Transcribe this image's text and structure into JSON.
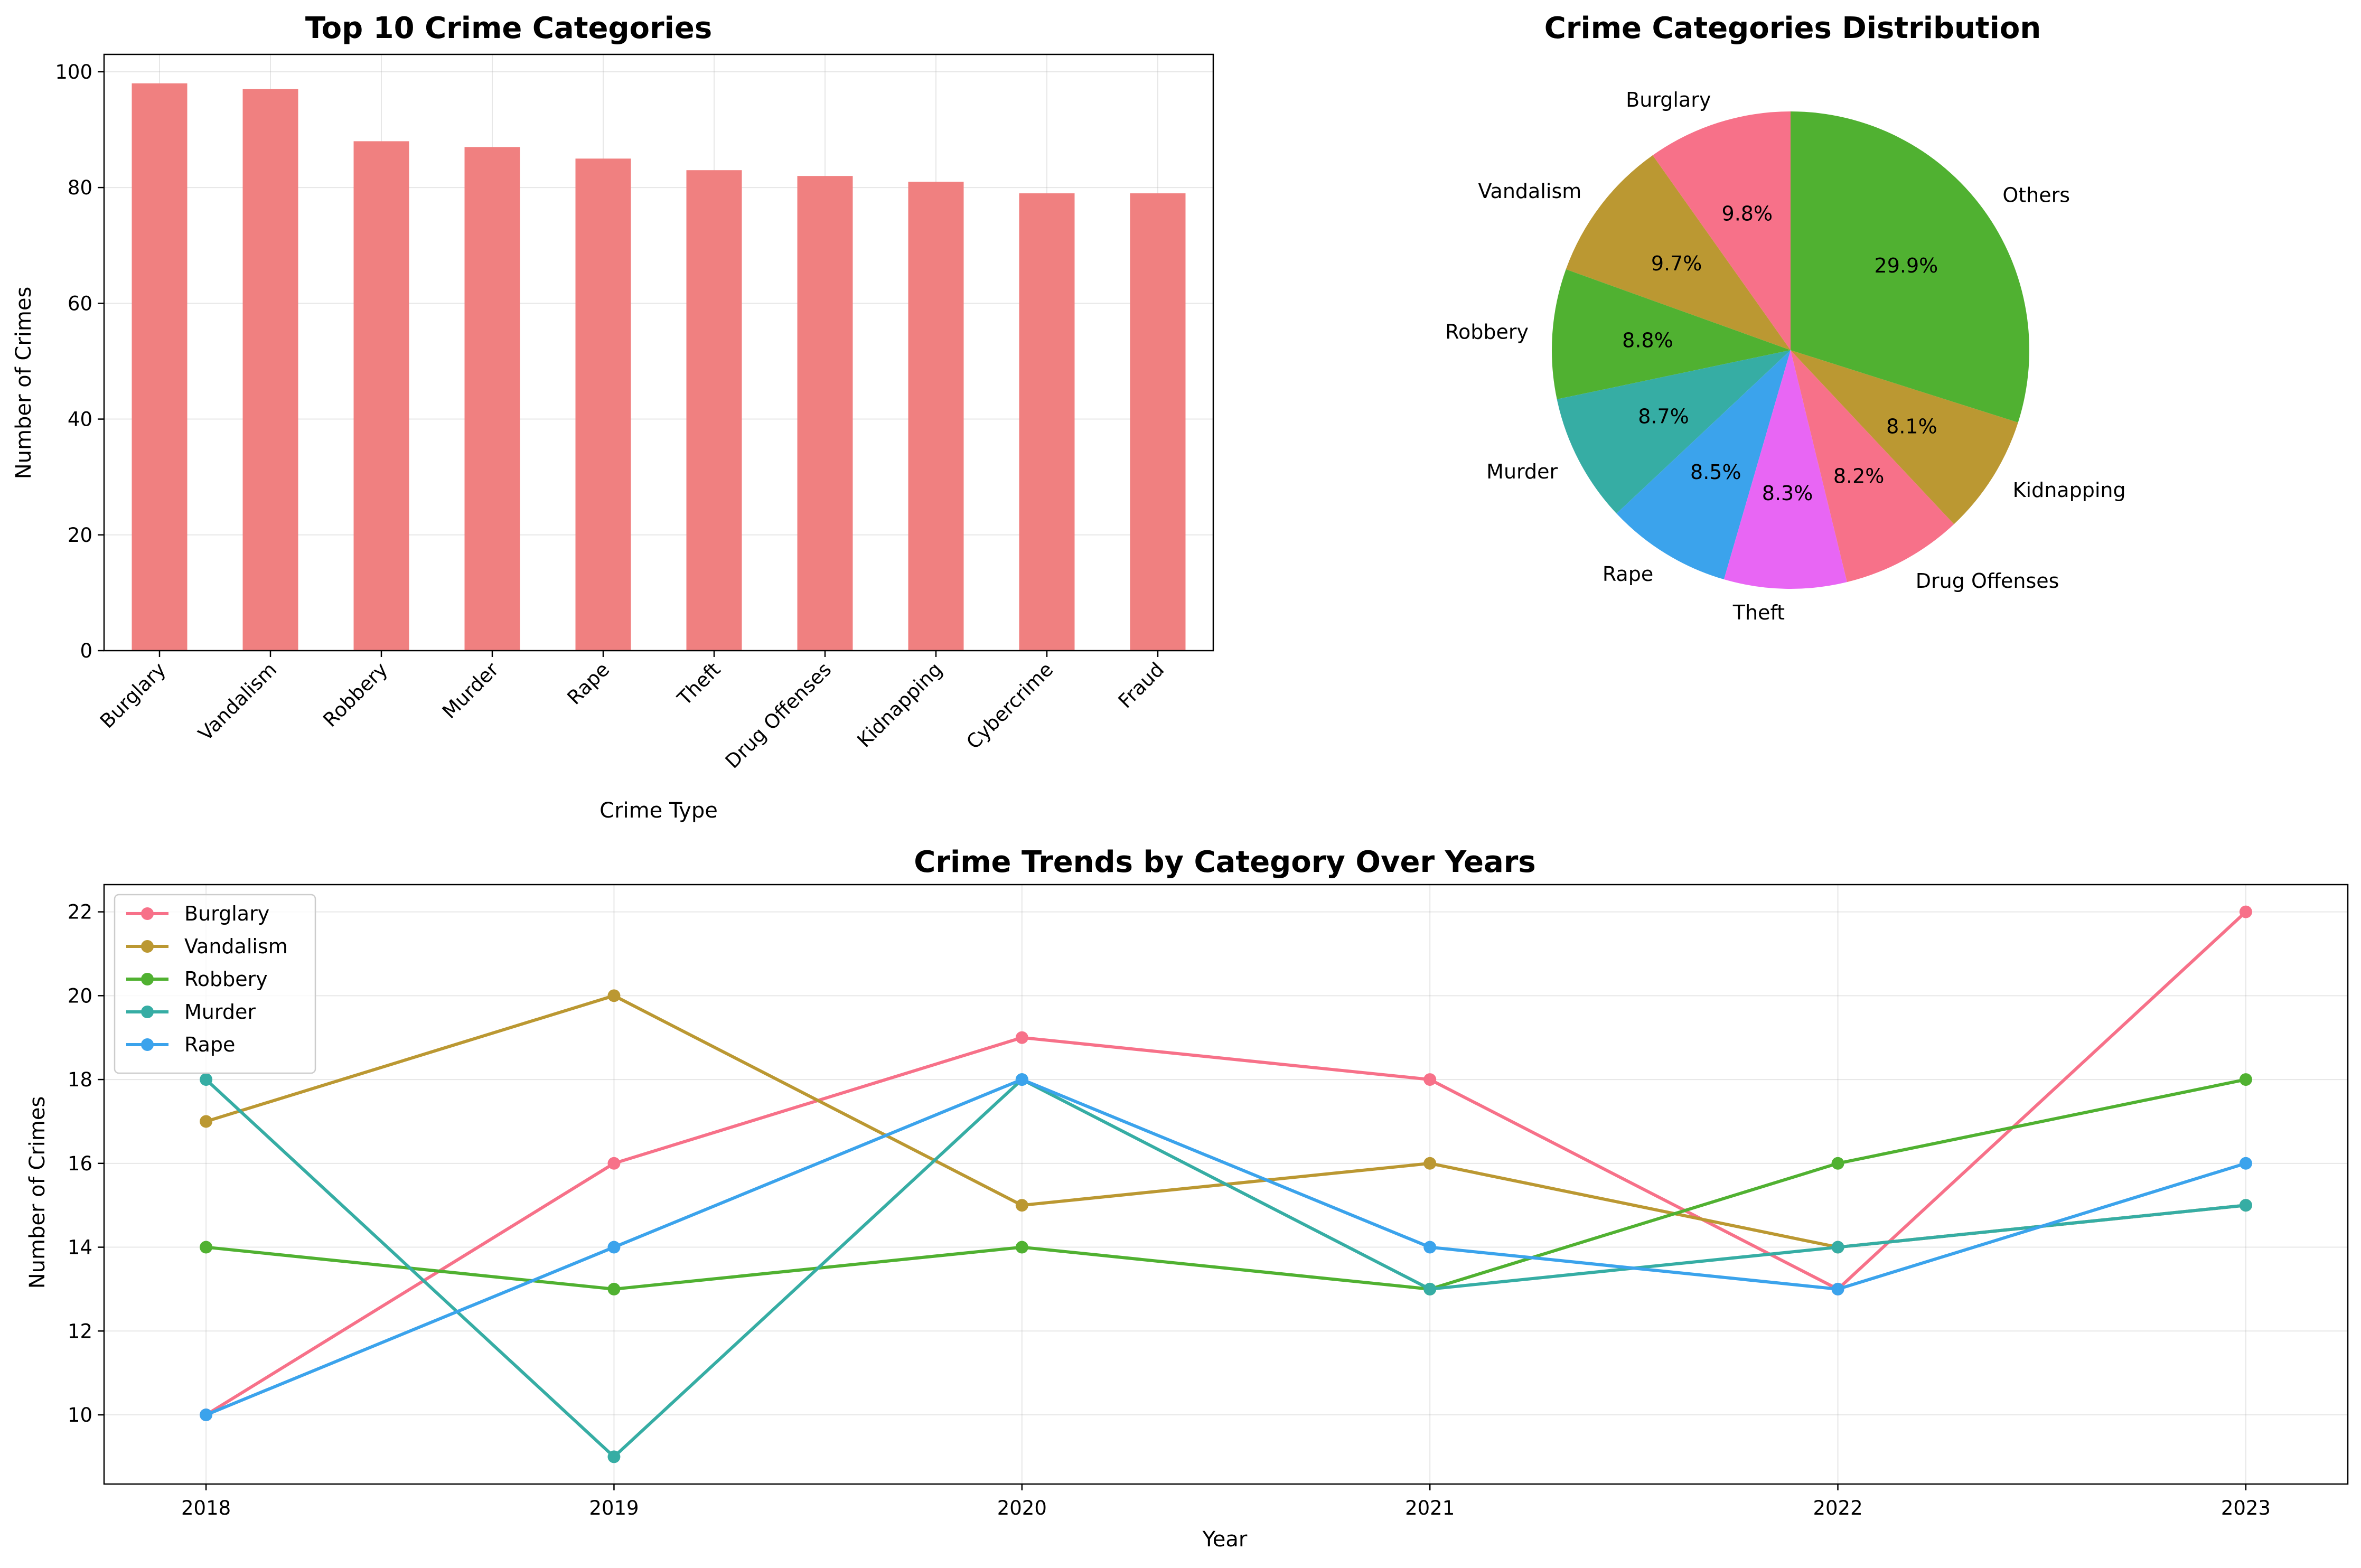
{
  "chart_data": [
    {
      "type": "bar",
      "title": "Top 10 Crime Categories",
      "xlabel": "Crime Type",
      "ylabel": "Number of Crimes",
      "categories": [
        "Burglary",
        "Vandalism",
        "Robbery",
        "Murder",
        "Rape",
        "Theft",
        "Drug Offenses",
        "Kidnapping",
        "Cybercrime",
        "Fraud"
      ],
      "values": [
        98,
        97,
        88,
        87,
        85,
        83,
        82,
        81,
        79,
        79
      ],
      "ylim": [
        0,
        103
      ],
      "yticks": [
        0,
        20,
        40,
        60,
        80,
        100
      ],
      "grid": true,
      "color": "#f08080"
    },
    {
      "type": "pie",
      "title": "Crime Categories Distribution",
      "labels": [
        "Burglary",
        "Vandalism",
        "Robbery",
        "Murder",
        "Rape",
        "Theft",
        "Drug Offenses",
        "Kidnapping",
        "Others"
      ],
      "values": [
        98,
        97,
        88,
        87,
        85,
        83,
        82,
        81,
        299
      ],
      "percent_labels": [
        "9.8%",
        "9.7%",
        "8.8%",
        "8.7%",
        "8.5%",
        "8.3%",
        "8.2%",
        "8.1%",
        "29.9%"
      ],
      "colors": [
        "#f77189",
        "#bb9832",
        "#50b131",
        "#36ada4",
        "#3ba3ec",
        "#e866f4",
        "#f77189",
        "#bb9832",
        "#50b131"
      ],
      "start_angle_deg": 90,
      "direction": "counterclockwise"
    },
    {
      "type": "line",
      "title": "Crime Trends by Category Over Years",
      "xlabel": "Year",
      "ylabel": "Number of Crimes",
      "x": [
        2018,
        2019,
        2020,
        2021,
        2022,
        2023
      ],
      "xlim": [
        2017.75,
        2023.25
      ],
      "ylim": [
        8.35,
        22.65
      ],
      "yticks": [
        10,
        12,
        14,
        16,
        18,
        20,
        22
      ],
      "grid": true,
      "legend": "upper-left",
      "series": [
        {
          "name": "Burglary",
          "color": "#f77189",
          "values": [
            10,
            16,
            19,
            18,
            13,
            22
          ]
        },
        {
          "name": "Vandalism",
          "color": "#bb9832",
          "values": [
            17,
            20,
            15,
            16,
            14,
            15
          ]
        },
        {
          "name": "Robbery",
          "color": "#50b131",
          "values": [
            14,
            13,
            14,
            13,
            16,
            18
          ]
        },
        {
          "name": "Murder",
          "color": "#36ada4",
          "values": [
            18,
            9,
            18,
            13,
            14,
            15
          ]
        },
        {
          "name": "Rape",
          "color": "#3ba3ec",
          "values": [
            10,
            14,
            18,
            14,
            13,
            16
          ]
        }
      ]
    }
  ]
}
